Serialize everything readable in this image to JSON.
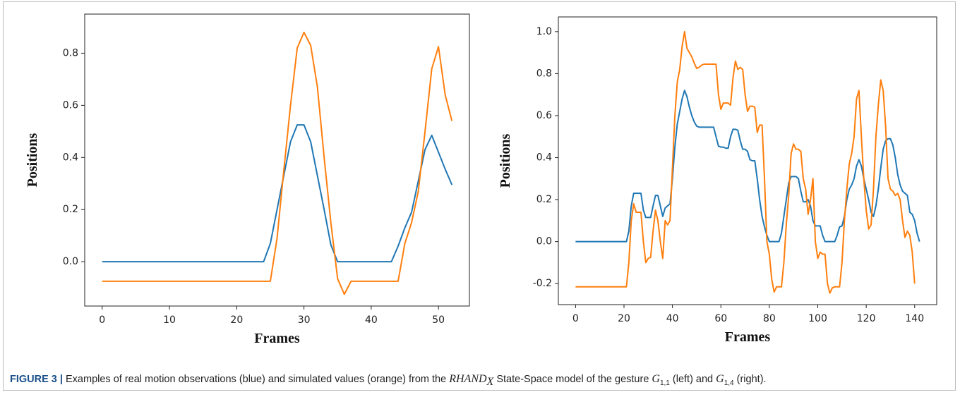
{
  "chart_data": [
    {
      "type": "line",
      "ylabel": "Positions",
      "xlabel": "Frames",
      "xlim": [
        -2.6,
        54.6
      ],
      "xticks": [
        0,
        10,
        20,
        30,
        40,
        50
      ],
      "ylim": [
        -0.17,
        0.95
      ],
      "yticks": [
        {
          "value": 0,
          "label": "0.0"
        },
        0.2,
        0.4,
        0.6,
        0.8
      ],
      "series": [
        {
          "color": "#1f77b4",
          "values": [
            0,
            0,
            0,
            0,
            0,
            0,
            0,
            0,
            0,
            0,
            0,
            0,
            0,
            0,
            0,
            0,
            0,
            0,
            0,
            0,
            0,
            0,
            0,
            0,
            0,
            0.07,
            0.2,
            0.33,
            0.46,
            0.525,
            0.525,
            0.46,
            0.33,
            0.2,
            0.065,
            0,
            0,
            0,
            0,
            0,
            0,
            0,
            0,
            0,
            0.06,
            0.13,
            0.19,
            0.31,
            0.43,
            0.485,
            0.42,
            0.355,
            0.295
          ]
        },
        {
          "color": "#ff7f0e",
          "values": [
            -0.075,
            -0.075,
            -0.075,
            -0.075,
            -0.075,
            -0.075,
            -0.075,
            -0.075,
            -0.075,
            -0.075,
            -0.075,
            -0.075,
            -0.075,
            -0.075,
            -0.075,
            -0.075,
            -0.075,
            -0.075,
            -0.075,
            -0.075,
            -0.075,
            -0.075,
            -0.075,
            -0.075,
            -0.075,
            -0.075,
            0.09,
            0.35,
            0.6,
            0.82,
            0.88,
            0.83,
            0.67,
            0.4,
            0.15,
            -0.065,
            -0.125,
            -0.075,
            -0.075,
            -0.075,
            -0.075,
            -0.075,
            -0.075,
            -0.075,
            -0.075,
            0.07,
            0.15,
            0.27,
            0.5,
            0.74,
            0.825,
            0.64,
            0.54
          ]
        }
      ]
    },
    {
      "type": "line",
      "ylabel": "Positions",
      "xlabel": "Frames",
      "xlim": [
        -7.1,
        149.1
      ],
      "xticks": [
        0,
        20,
        40,
        60,
        80,
        100,
        120,
        140
      ],
      "ylim": [
        -0.3,
        1.07
      ],
      "yticks": [
        -0.2,
        {
          "value": 0,
          "label": "0.0"
        },
        0.2,
        0.4,
        0.6,
        0.8,
        {
          "value": 1,
          "label": "1.0"
        }
      ],
      "series": [
        {
          "color": "#1f77b4",
          "values": [
            0,
            0,
            0,
            0,
            0,
            0,
            0,
            0,
            0,
            0,
            0,
            0,
            0,
            0,
            0,
            0,
            0,
            0,
            0,
            0,
            0,
            0,
            0.05,
            0.17,
            0.23,
            0.23,
            0.23,
            0.23,
            0.15,
            0.115,
            0.115,
            0.115,
            0.17,
            0.22,
            0.22,
            0.17,
            0.12,
            0.16,
            0.17,
            0.18,
            0.3,
            0.45,
            0.56,
            0.62,
            0.68,
            0.72,
            0.69,
            0.64,
            0.6,
            0.57,
            0.55,
            0.545,
            0.545,
            0.545,
            0.545,
            0.545,
            0.545,
            0.545,
            0.5,
            0.455,
            0.45,
            0.45,
            0.445,
            0.445,
            0.5,
            0.535,
            0.535,
            0.53,
            0.48,
            0.44,
            0.44,
            0.43,
            0.39,
            0.385,
            0.385,
            0.3,
            0.2,
            0.12,
            0.07,
            0.03,
            0,
            0,
            0,
            0,
            0,
            0.04,
            0.12,
            0.2,
            0.28,
            0.31,
            0.31,
            0.31,
            0.3,
            0.24,
            0.19,
            0.19,
            0.2,
            0.17,
            0.1,
            0.075,
            0.075,
            0.075,
            0.03,
            0,
            0,
            0,
            0,
            0,
            0.03,
            0.07,
            0.075,
            0.12,
            0.2,
            0.25,
            0.27,
            0.3,
            0.36,
            0.39,
            0.36,
            0.3,
            0.25,
            0.2,
            0.14,
            0.12,
            0.17,
            0.25,
            0.35,
            0.44,
            0.48,
            0.49,
            0.49,
            0.46,
            0.4,
            0.32,
            0.27,
            0.24,
            0.23,
            0.22,
            0.14,
            0.13,
            0.1,
            0.04,
            0
          ]
        },
        {
          "color": "#ff7f0e",
          "values": [
            -0.215,
            -0.215,
            -0.215,
            -0.215,
            -0.215,
            -0.215,
            -0.215,
            -0.215,
            -0.215,
            -0.215,
            -0.215,
            -0.215,
            -0.215,
            -0.215,
            -0.215,
            -0.215,
            -0.215,
            -0.215,
            -0.215,
            -0.215,
            -0.215,
            -0.215,
            -0.1,
            0.1,
            0.18,
            0.14,
            0.14,
            0.14,
            0.0,
            -0.1,
            -0.08,
            -0.075,
            0.05,
            0.15,
            0.1,
            0.0,
            -0.08,
            0.1,
            0.08,
            0.1,
            0.35,
            0.6,
            0.76,
            0.82,
            0.93,
            1.0,
            0.92,
            0.9,
            0.88,
            0.85,
            0.825,
            0.83,
            0.84,
            0.845,
            0.845,
            0.845,
            0.845,
            0.845,
            0.845,
            0.7,
            0.63,
            0.66,
            0.66,
            0.66,
            0.65,
            0.78,
            0.86,
            0.82,
            0.83,
            0.82,
            0.7,
            0.62,
            0.645,
            0.645,
            0.64,
            0.52,
            0.555,
            0.555,
            0.3,
            0.0,
            -0.06,
            -0.18,
            -0.24,
            -0.215,
            -0.215,
            -0.215,
            -0.1,
            0.08,
            0.22,
            0.42,
            0.465,
            0.44,
            0.44,
            0.43,
            0.3,
            0.25,
            0.13,
            0.2,
            0.3,
            0.0,
            -0.08,
            -0.05,
            -0.06,
            -0.06,
            -0.2,
            -0.245,
            -0.22,
            -0.215,
            -0.215,
            -0.215,
            -0.1,
            0.1,
            0.25,
            0.37,
            0.42,
            0.5,
            0.68,
            0.72,
            0.5,
            0.3,
            0.15,
            0.06,
            0.08,
            0.25,
            0.5,
            0.65,
            0.77,
            0.72,
            0.55,
            0.3,
            0.25,
            0.24,
            0.22,
            0.23,
            0.2,
            0.1,
            0.02,
            0.05,
            0.03,
            -0.05,
            -0.2
          ]
        }
      ]
    }
  ],
  "caption": {
    "label": "FIGURE 3 |",
    "parts": [
      "Examples of real motion observations (blue) and simulated values (orange) from the ",
      "RHAND",
      "X",
      " State-Space model of the gesture ",
      "G",
      "1,1",
      " (left) and ",
      "G",
      "1,4",
      " (right)."
    ]
  }
}
